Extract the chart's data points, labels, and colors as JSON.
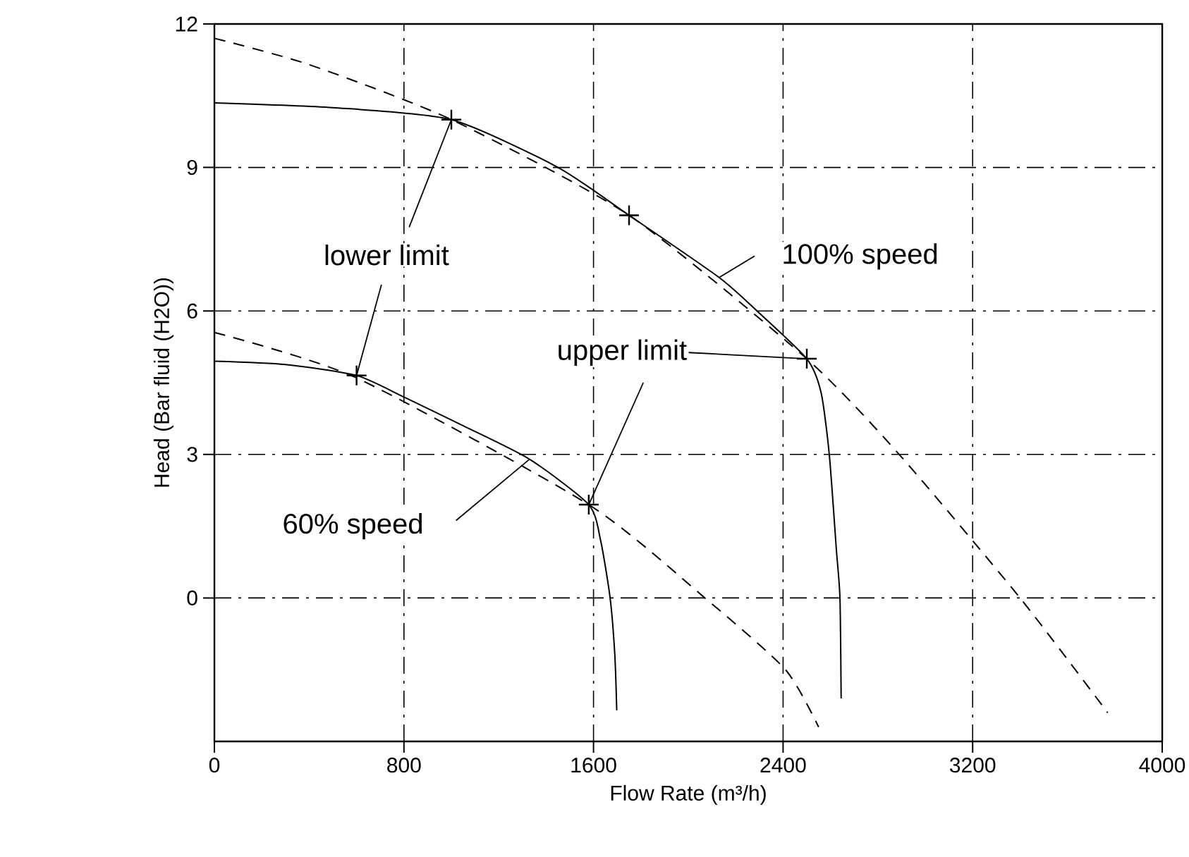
{
  "chart_data": {
    "type": "line",
    "xlabel": "Flow Rate (m³/h)",
    "ylabel": "Head (Bar fluid (H2O))",
    "xlim": [
      0,
      4000
    ],
    "ylim": [
      -3,
      12
    ],
    "xticks": [
      0,
      800,
      1600,
      2400,
      3200,
      4000
    ],
    "yticks": [
      0,
      3,
      6,
      9,
      12
    ],
    "grid": true,
    "series": [
      {
        "color": "#000000",
        "line_style": "solid",
        "x": [
          0,
          500,
          1000,
          1450,
          1750,
          2130,
          2290,
          2500,
          2560,
          2595,
          2625,
          2640,
          2645
        ],
        "values": [
          10.35,
          10.25,
          10.0,
          9.0,
          8.0,
          6.7,
          6.0,
          5.0,
          4.3,
          3.0,
          1.0,
          0.0,
          -2.1
        ]
      },
      {
        "color": "#000000",
        "line_style": "solid",
        "x": [
          0,
          300,
          600,
          800,
          1050,
          1330,
          1580,
          1630,
          1670,
          1690,
          1698
        ],
        "values": [
          4.95,
          4.88,
          4.65,
          4.2,
          3.6,
          2.9,
          1.95,
          1.2,
          0.0,
          -1.2,
          -2.35
        ]
      },
      {
        "color": "#000000",
        "line_style": "dashed",
        "x": [
          0,
          400,
          1000,
          1750,
          2500,
          2890,
          3400,
          3770
        ],
        "values": [
          11.7,
          11.15,
          10.0,
          8.0,
          5.0,
          3.0,
          0.0,
          -2.4
        ]
      },
      {
        "color": "#000000",
        "line_style": "dashed",
        "x": [
          0,
          600,
          1580,
          2070,
          2410,
          2550
        ],
        "values": [
          5.55,
          4.6,
          1.95,
          0.0,
          -1.5,
          -2.7
        ]
      },
      {
        "type": "scatter",
        "marker": "cross",
        "color": "#000000",
        "x": [
          1000,
          1750,
          2500,
          600,
          1580
        ],
        "values": [
          10.0,
          8.0,
          5.0,
          4.65,
          1.95
        ]
      }
    ],
    "annotations": [
      {
        "text": "lower limit",
        "x": 1000,
        "y": 10.0
      },
      {
        "text": "upper limit",
        "x": 1580,
        "y": 1.95
      },
      {
        "text": "100% speed",
        "x": 2130,
        "y": 6.7
      },
      {
        "text": "60% speed",
        "x": 1330,
        "y": 2.9
      }
    ]
  }
}
